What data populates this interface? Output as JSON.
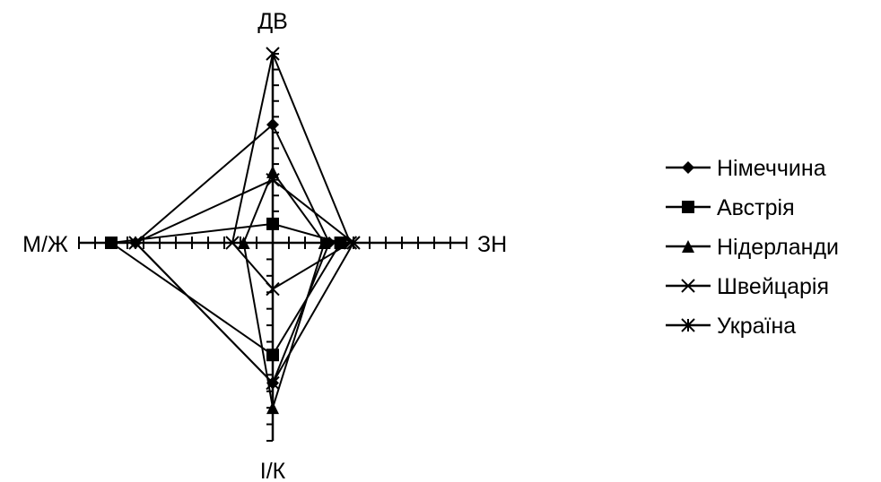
{
  "chart_data": {
    "type": "radar",
    "axes": [
      "ДВ",
      "ЗН",
      "І/К",
      "М/Ж"
    ],
    "axis_max": 120,
    "tick_step": 10,
    "grid": false,
    "legend_position": "right",
    "series": [
      {
        "name": "Німеччина",
        "marker": "diamond",
        "values": [
          75,
          35,
          85,
          85
        ]
      },
      {
        "name": "Австрія",
        "marker": "square",
        "values": [
          12,
          42,
          68,
          100
        ]
      },
      {
        "name": "Нідерланди",
        "marker": "triangle",
        "values": [
          45,
          32,
          100,
          18
        ]
      },
      {
        "name": "Швейцарія",
        "marker": "x",
        "values": [
          120,
          48,
          28,
          25
        ]
      },
      {
        "name": "Україна",
        "marker": "star",
        "values": [
          40,
          50,
          85,
          85
        ]
      }
    ]
  }
}
